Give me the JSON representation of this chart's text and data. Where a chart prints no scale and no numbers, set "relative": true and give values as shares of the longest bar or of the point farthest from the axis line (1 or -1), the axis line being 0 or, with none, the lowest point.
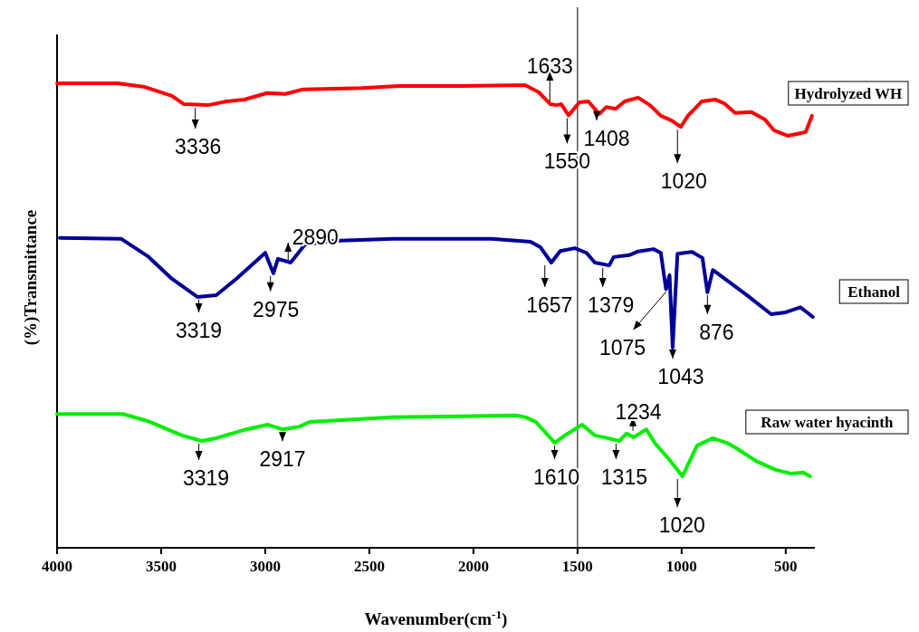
{
  "chart_data": {
    "type": "line",
    "relative": true,
    "xlabel": "Wavenumber(cm$^{-1}$)",
    "ylabel": "(%)Transmittance",
    "xlim": [
      4000,
      360
    ],
    "xticks": [
      4000,
      3500,
      3000,
      2500,
      2000,
      1500,
      1000,
      500
    ],
    "legend": false,
    "grid": false,
    "marker": "none",
    "line_style": "solid",
    "ref_lines": [
      {
        "axis": "x",
        "value": 1500,
        "color": "#000000"
      }
    ],
    "series": [
      {
        "name": "Hydrolyzed WH",
        "color": "#ff0000",
        "x": [
          4000,
          3709,
          3578,
          3448,
          3391,
          3274,
          3187,
          3100,
          2991,
          2904,
          2817,
          2535,
          2361,
          2100,
          1752,
          1687,
          1630,
          1600,
          1578,
          1543,
          1491,
          1448,
          1396,
          1361,
          1317,
          1274,
          1209,
          1152,
          1100,
          1048,
          1004,
          970,
          904,
          839,
          796,
          743,
          665,
          600,
          557,
          491,
          448,
          404,
          374
        ],
        "values": [
          1.0,
          1.0,
          0.992,
          0.973,
          0.955,
          0.953,
          0.961,
          0.965,
          0.979,
          0.977,
          0.987,
          0.99,
          0.994,
          0.994,
          0.996,
          0.981,
          0.955,
          0.953,
          0.955,
          0.931,
          0.959,
          0.961,
          0.934,
          0.949,
          0.945,
          0.961,
          0.969,
          0.953,
          0.93,
          0.92,
          0.906,
          0.93,
          0.961,
          0.965,
          0.957,
          0.936,
          0.938,
          0.922,
          0.899,
          0.887,
          0.891,
          0.895,
          0.93
        ]
      },
      {
        "name": "Ethanol",
        "color": "#000099",
        "x": [
          3987,
          3691,
          3565,
          3448,
          3326,
          3235,
          3139,
          3000,
          2961,
          2939,
          2878,
          2809,
          2670,
          2387,
          1913,
          1726,
          1678,
          1626,
          1583,
          1513,
          1457,
          1417,
          1348,
          1326,
          1252,
          1209,
          1135,
          1100,
          1075,
          1058,
          1043,
          1020,
          950,
          900,
          876,
          850,
          687,
          570,
          500,
          430,
          370
        ],
        "values": [
          0.667,
          0.665,
          0.628,
          0.579,
          0.54,
          0.544,
          0.579,
          0.635,
          0.591,
          0.622,
          0.614,
          0.653,
          0.661,
          0.665,
          0.665,
          0.659,
          0.647,
          0.614,
          0.639,
          0.645,
          0.635,
          0.614,
          0.608,
          0.626,
          0.63,
          0.638,
          0.643,
          0.635,
          0.557,
          0.587,
          0.431,
          0.633,
          0.637,
          0.624,
          0.55,
          0.598,
          0.544,
          0.503,
          0.507,
          0.518,
          0.497
        ]
      },
      {
        "name": "Raw water hyacinth",
        "color": "#00ee00",
        "x": [
          4000,
          3683,
          3565,
          3400,
          3304,
          3235,
          3091,
          2987,
          2917,
          2835,
          2787,
          2387,
          1796,
          1748,
          1700,
          1609,
          1561,
          1478,
          1417,
          1374,
          1300,
          1265,
          1230,
          1170,
          1126,
          1065,
          996,
          926,
          852,
          783,
          735,
          643,
          548,
          478,
          417,
          383
        ],
        "values": [
          0.288,
          0.288,
          0.273,
          0.242,
          0.23,
          0.236,
          0.255,
          0.265,
          0.255,
          0.261,
          0.271,
          0.281,
          0.285,
          0.281,
          0.271,
          0.226,
          0.242,
          0.265,
          0.242,
          0.238,
          0.23,
          0.246,
          0.238,
          0.255,
          0.224,
          0.193,
          0.154,
          0.22,
          0.236,
          0.226,
          0.214,
          0.187,
          0.168,
          0.16,
          0.162,
          0.154
        ]
      }
    ],
    "annotations": [
      {
        "text": "3336",
        "x": 3336,
        "y": 0.953
      },
      {
        "text": "1633",
        "x": 1633,
        "y": 0.955
      },
      {
        "text": "1550",
        "x": 1550,
        "y": 0.931
      },
      {
        "text": "1408",
        "x": 1408,
        "y": 0.934
      },
      {
        "text": "1020",
        "x": 1020,
        "y": 0.906
      },
      {
        "text": "3319",
        "x": 3319,
        "y": 0.54
      },
      {
        "text": "2975",
        "x": 2975,
        "y": 0.591
      },
      {
        "text": "2890",
        "x": 2890,
        "y": 0.614
      },
      {
        "text": "1657",
        "x": 1657,
        "y": 0.614
      },
      {
        "text": "1379",
        "x": 1379,
        "y": 0.608
      },
      {
        "text": "1075",
        "x": 1075,
        "y": 0.557
      },
      {
        "text": "1043",
        "x": 1043,
        "y": 0.431
      },
      {
        "text": "876",
        "x": 876,
        "y": 0.55
      },
      {
        "text": "3319",
        "x": 3319,
        "y": 0.23
      },
      {
        "text": "2917",
        "x": 2917,
        "y": 0.255
      },
      {
        "text": "1610",
        "x": 1610,
        "y": 0.226
      },
      {
        "text": "1315",
        "x": 1315,
        "y": 0.23
      },
      {
        "text": "1234",
        "x": 1234,
        "y": 0.246
      },
      {
        "text": "1020",
        "x": 1020,
        "y": 0.154
      }
    ]
  }
}
